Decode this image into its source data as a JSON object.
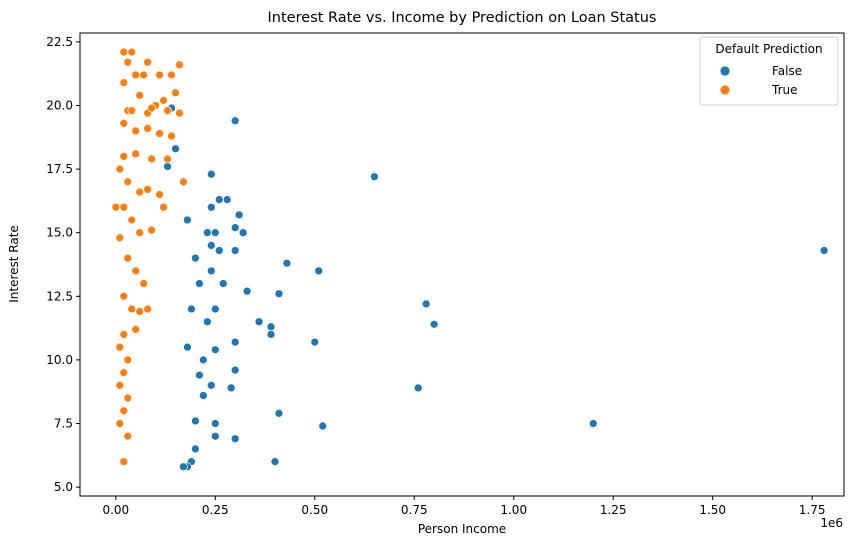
{
  "chart_data": {
    "type": "scatter",
    "title": "Interest Rate vs. Income by Prediction on Loan Status",
    "xlabel": "Person Income",
    "ylabel": "Interest Rate",
    "x_offset_label": "1e6",
    "xlim": [
      -0.09,
      1.83
    ],
    "ylim": [
      4.65,
      22.85
    ],
    "x_ticks": [
      0.0,
      0.25,
      0.5,
      0.75,
      1.0,
      1.25,
      1.5,
      1.75
    ],
    "x_tick_labels": [
      "0.00",
      "0.25",
      "0.50",
      "0.75",
      "1.00",
      "1.25",
      "1.50",
      "1.75"
    ],
    "y_ticks": [
      5.0,
      7.5,
      10.0,
      12.5,
      15.0,
      17.5,
      20.0,
      22.5
    ],
    "y_tick_labels": [
      "5.0",
      "7.5",
      "10.0",
      "12.5",
      "15.0",
      "17.5",
      "20.0",
      "22.5"
    ],
    "grid": false,
    "legend": {
      "title": "Default Prediction",
      "placement": "top-right",
      "entries": [
        {
          "label": "False",
          "color": "#1f77b4"
        },
        {
          "label": "True",
          "color": "#ff7f0e"
        }
      ]
    },
    "series": [
      {
        "name": "False",
        "color": "#1f77b4",
        "points": [
          [
            1.78,
            14.3
          ],
          [
            1.2,
            7.5
          ],
          [
            0.76,
            8.9
          ],
          [
            0.78,
            12.2
          ],
          [
            0.8,
            11.4
          ],
          [
            0.65,
            17.2
          ],
          [
            0.51,
            13.5
          ],
          [
            0.5,
            10.7
          ],
          [
            0.52,
            7.4
          ],
          [
            0.43,
            13.8
          ],
          [
            0.41,
            12.6
          ],
          [
            0.41,
            7.9
          ],
          [
            0.4,
            6.0
          ],
          [
            0.39,
            11.3
          ],
          [
            0.39,
            11.0
          ],
          [
            0.36,
            11.5
          ],
          [
            0.33,
            12.7
          ],
          [
            0.32,
            15.0
          ],
          [
            0.31,
            15.7
          ],
          [
            0.3,
            19.4
          ],
          [
            0.3,
            15.2
          ],
          [
            0.3,
            14.3
          ],
          [
            0.3,
            10.7
          ],
          [
            0.3,
            9.6
          ],
          [
            0.3,
            6.9
          ],
          [
            0.29,
            8.9
          ],
          [
            0.28,
            16.3
          ],
          [
            0.27,
            13.0
          ],
          [
            0.26,
            16.3
          ],
          [
            0.26,
            14.3
          ],
          [
            0.25,
            15.0
          ],
          [
            0.25,
            12.0
          ],
          [
            0.25,
            10.4
          ],
          [
            0.24,
            17.3
          ],
          [
            0.24,
            16.0
          ],
          [
            0.24,
            14.5
          ],
          [
            0.24,
            13.5
          ],
          [
            0.24,
            9.0
          ],
          [
            0.25,
            7.5
          ],
          [
            0.25,
            7.0
          ],
          [
            0.23,
            15.0
          ],
          [
            0.23,
            11.5
          ],
          [
            0.22,
            10.0
          ],
          [
            0.22,
            8.6
          ],
          [
            0.21,
            13.0
          ],
          [
            0.21,
            9.4
          ],
          [
            0.2,
            14.0
          ],
          [
            0.2,
            7.6
          ],
          [
            0.2,
            6.5
          ],
          [
            0.19,
            12.0
          ],
          [
            0.19,
            6.0
          ],
          [
            0.18,
            5.8
          ],
          [
            0.18,
            15.5
          ],
          [
            0.18,
            10.5
          ],
          [
            0.17,
            5.8
          ],
          [
            0.15,
            18.3
          ],
          [
            0.14,
            19.9
          ],
          [
            0.13,
            17.6
          ]
        ]
      },
      {
        "name": "True",
        "color": "#ff7f0e",
        "points": [
          [
            0.02,
            22.1
          ],
          [
            0.04,
            22.1
          ],
          [
            0.03,
            21.7
          ],
          [
            0.05,
            21.2
          ],
          [
            0.07,
            21.2
          ],
          [
            0.08,
            21.7
          ],
          [
            0.11,
            21.2
          ],
          [
            0.14,
            21.2
          ],
          [
            0.16,
            21.6
          ],
          [
            0.15,
            20.5
          ],
          [
            0.12,
            20.2
          ],
          [
            0.1,
            20.0
          ],
          [
            0.06,
            20.4
          ],
          [
            0.02,
            20.9
          ],
          [
            0.03,
            19.8
          ],
          [
            0.04,
            19.8
          ],
          [
            0.08,
            19.7
          ],
          [
            0.09,
            19.9
          ],
          [
            0.13,
            19.8
          ],
          [
            0.16,
            19.7
          ],
          [
            0.02,
            19.3
          ],
          [
            0.05,
            19.0
          ],
          [
            0.08,
            19.1
          ],
          [
            0.11,
            18.9
          ],
          [
            0.14,
            18.8
          ],
          [
            0.02,
            18.0
          ],
          [
            0.05,
            18.1
          ],
          [
            0.09,
            17.9
          ],
          [
            0.13,
            17.9
          ],
          [
            0.17,
            17.0
          ],
          [
            0.01,
            17.5
          ],
          [
            0.03,
            17.0
          ],
          [
            0.06,
            16.6
          ],
          [
            0.08,
            16.7
          ],
          [
            0.11,
            16.5
          ],
          [
            0.0,
            16.0
          ],
          [
            0.02,
            16.0
          ],
          [
            0.04,
            15.5
          ],
          [
            0.06,
            15.0
          ],
          [
            0.09,
            15.1
          ],
          [
            0.12,
            16.0
          ],
          [
            0.01,
            14.8
          ],
          [
            0.03,
            14.0
          ],
          [
            0.05,
            13.5
          ],
          [
            0.07,
            13.0
          ],
          [
            0.02,
            12.5
          ],
          [
            0.04,
            12.0
          ],
          [
            0.06,
            11.9
          ],
          [
            0.02,
            11.0
          ],
          [
            0.05,
            11.2
          ],
          [
            0.08,
            12.0
          ],
          [
            0.01,
            10.5
          ],
          [
            0.03,
            10.0
          ],
          [
            0.02,
            9.5
          ],
          [
            0.01,
            9.0
          ],
          [
            0.03,
            8.5
          ],
          [
            0.02,
            8.0
          ],
          [
            0.01,
            7.5
          ],
          [
            0.02,
            6.0
          ],
          [
            0.03,
            7.0
          ]
        ]
      }
    ]
  }
}
